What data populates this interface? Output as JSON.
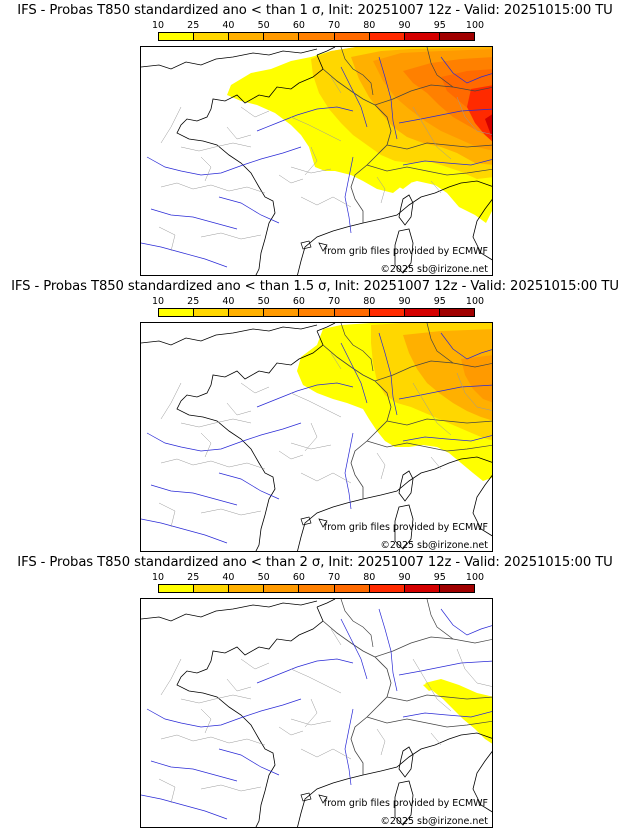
{
  "colorbar": {
    "ticks": [
      "10",
      "25",
      "40",
      "50",
      "60",
      "70",
      "80",
      "90",
      "95",
      "100"
    ],
    "colors": [
      "#ffff00",
      "#ffd700",
      "#ffb000",
      "#ff9a00",
      "#ff8000",
      "#ff6a00",
      "#ff2a00",
      "#d40000",
      "#a00000",
      "#5a0000"
    ]
  },
  "panels": [
    {
      "title": "IFS - Probas T850  standardized ano < than 1 σ, Init: 20251007 12z - Valid: 20251015:00 TU",
      "source_note": "from grib files provided by ECMWF",
      "copyright": "©2025 sb@irizone.net"
    },
    {
      "title": "IFS - Probas T850  standardized ano < than 1.5 σ, Init: 20251007 12z - Valid: 20251015:00 TU",
      "source_note": "from grib files provided by ECMWF",
      "copyright": "©2025 sb@irizone.net"
    },
    {
      "title": "IFS - Probas T850  standardized ano < than 2 σ, Init: 20251007 12z - Valid: 20251015:00 TU",
      "source_note": "from grib files provided by ECMWF",
      "copyright": "©2025 sb@irizone.net"
    }
  ]
}
